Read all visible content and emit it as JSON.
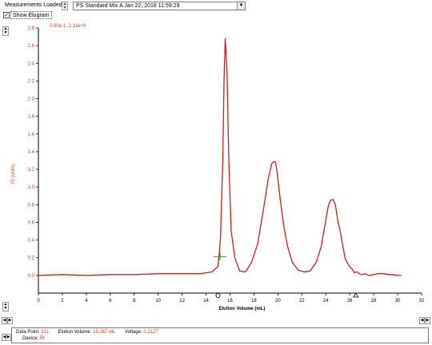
{
  "toolbar": {
    "measurements_label": "Measurements Loaded 1:",
    "selected_measurement": "PS Standard Mix A   Jan 22, 2018   11:59:29",
    "show_elugram_label": "Show Elugram",
    "show_elugram_checked": true
  },
  "chart_data": {
    "type": "line",
    "title": "",
    "scale_readout": "0.00e-1, 2.11e+0",
    "xlabel": "Elution Volume (mL)",
    "ylabel": "RI (Volts)",
    "xlim": [
      0,
      32
    ],
    "ylim": [
      -0.2,
      2.8
    ],
    "x_ticks": [
      0,
      2,
      4,
      6,
      8,
      10,
      12,
      14,
      16,
      18,
      20,
      22,
      24,
      26,
      28,
      30,
      32
    ],
    "y_ticks": [
      0.0,
      0.2,
      0.4,
      0.6,
      0.8,
      1.0,
      1.2,
      1.4,
      1.6,
      1.8,
      2.0,
      2.2,
      2.4,
      2.6,
      2.8
    ],
    "colors": {
      "trace": "#cc1f1f",
      "axis_text": "#e03c1c",
      "marker": "#3c9a3c"
    },
    "series": [
      {
        "x": [
          0.0,
          2.0,
          4.0,
          6.0,
          8.0,
          10.0,
          12.0,
          13.5,
          14.5,
          15.0,
          15.2,
          15.4,
          15.5,
          15.6,
          15.75,
          15.9,
          16.1,
          16.4,
          16.8,
          17.3,
          17.8,
          18.3,
          18.8,
          19.2,
          19.5,
          19.7,
          19.8,
          19.95,
          20.2,
          20.5,
          20.8,
          21.2,
          21.7,
          22.2,
          22.7,
          23.2,
          23.6,
          23.9,
          24.2,
          24.4,
          24.6,
          24.8,
          25.0,
          25.2,
          25.4,
          25.6,
          25.8,
          26.0,
          26.2,
          26.4,
          26.6,
          26.8,
          27.0,
          27.3,
          27.6,
          28.0,
          28.4,
          28.8,
          29.2,
          29.6,
          30.0,
          30.3
        ],
        "y": [
          0.0,
          0.01,
          0.0,
          0.01,
          0.01,
          0.02,
          0.02,
          0.02,
          0.04,
          0.1,
          0.4,
          1.3,
          2.2,
          2.68,
          2.3,
          1.3,
          0.5,
          0.2,
          0.05,
          0.04,
          0.15,
          0.35,
          0.75,
          1.1,
          1.27,
          1.29,
          1.28,
          1.15,
          0.85,
          0.55,
          0.33,
          0.15,
          0.06,
          0.04,
          0.05,
          0.15,
          0.32,
          0.55,
          0.78,
          0.85,
          0.86,
          0.8,
          0.62,
          0.5,
          0.35,
          0.2,
          0.14,
          0.1,
          0.07,
          0.03,
          0.04,
          0.02,
          0.01,
          0.02,
          0.0,
          0.01,
          0.02,
          0.02,
          0.01,
          0.01,
          0.0,
          0.0
        ]
      }
    ],
    "marker": {
      "x": 15.167,
      "y": 0.2127
    }
  },
  "status": {
    "data_point_label": "Data Point:",
    "data_point_value": "911",
    "elution_label": "Elution Volume:",
    "elution_value": "15.167 mL",
    "voltage_label": "Voltage:",
    "voltage_value": "0.2127",
    "device_label": "Device:",
    "device_value": "RI"
  }
}
